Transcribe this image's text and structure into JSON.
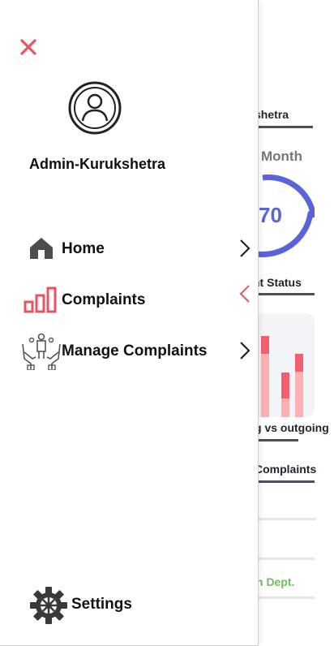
{
  "background": {
    "header_fragment": "shetra",
    "month_label": "Month",
    "gauge_value": "70",
    "status_fragment": "nt Status",
    "chart_caption_fragment": "g vs outgoing",
    "complaints_fragment": "Complaints",
    "dept_fragment": "n Dept."
  },
  "drawer": {
    "user_name": "Admin-Kurukshetra",
    "items": [
      {
        "label": "Home",
        "icon": "home-icon"
      },
      {
        "label": "Complaints",
        "icon": "bar-chart-icon"
      },
      {
        "label": "Manage Complaints",
        "icon": "people-hands-icon"
      }
    ],
    "settings_label": "Settings"
  },
  "colors": {
    "accent": "#e8545f",
    "gauge": "#5b63d9",
    "text": "#111111"
  }
}
